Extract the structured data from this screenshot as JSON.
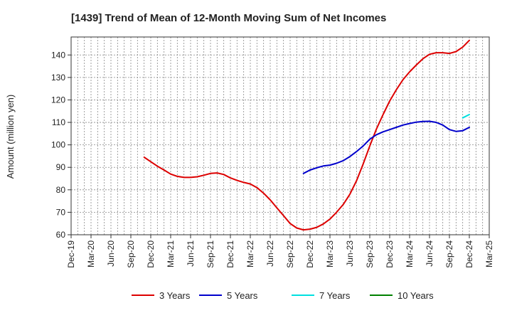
{
  "chart_data": {
    "type": "line",
    "title": "[1439]  Trend of Mean of 12-Month Moving Sum of Net Incomes",
    "ylabel": "Amount (million yen)",
    "xlabel": "",
    "ylim": [
      60,
      148
    ],
    "yticks": [
      60,
      70,
      80,
      90,
      100,
      110,
      120,
      130,
      140
    ],
    "x_range": [
      "2019-12",
      "2025-03"
    ],
    "xtick_labels": [
      "Dec-19",
      "Mar-20",
      "Jun-20",
      "Sep-20",
      "Dec-20",
      "Mar-21",
      "Jun-21",
      "Sep-21",
      "Dec-21",
      "Mar-22",
      "Jun-22",
      "Sep-22",
      "Dec-22",
      "Mar-23",
      "Jun-23",
      "Sep-23",
      "Dec-23",
      "Mar-24",
      "Jun-24",
      "Sep-24",
      "Dec-24",
      "Mar-25"
    ],
    "grid": true,
    "legend_position": "bottom",
    "series": [
      {
        "name": "3 Years",
        "color": "#dd0000",
        "x": [
          "2020-11",
          "2020-12",
          "2021-01",
          "2021-02",
          "2021-03",
          "2021-04",
          "2021-05",
          "2021-06",
          "2021-07",
          "2021-08",
          "2021-09",
          "2021-10",
          "2021-11",
          "2021-12",
          "2022-01",
          "2022-02",
          "2022-03",
          "2022-04",
          "2022-05",
          "2022-06",
          "2022-07",
          "2022-08",
          "2022-09",
          "2022-10",
          "2022-11",
          "2022-12",
          "2023-01",
          "2023-02",
          "2023-03",
          "2023-04",
          "2023-05",
          "2023-06",
          "2023-07",
          "2023-08",
          "2023-09",
          "2023-10",
          "2023-11",
          "2023-12",
          "2024-01",
          "2024-02",
          "2024-03",
          "2024-04",
          "2024-05",
          "2024-06",
          "2024-07",
          "2024-08",
          "2024-09",
          "2024-10",
          "2024-11",
          "2024-12"
        ],
        "values": [
          94.5,
          92.5,
          90.5,
          88.8,
          87.0,
          86.0,
          85.5,
          85.5,
          85.8,
          86.5,
          87.3,
          87.5,
          86.8,
          85.3,
          84.2,
          83.3,
          82.6,
          81.0,
          78.5,
          75.5,
          72.0,
          68.5,
          65.0,
          63.0,
          62.2,
          62.5,
          63.3,
          64.8,
          67.0,
          70.0,
          73.5,
          78.0,
          84.0,
          91.5,
          99.5,
          107.0,
          113.5,
          119.5,
          124.5,
          129.0,
          132.5,
          135.5,
          138.3,
          140.3,
          141.0,
          141.0,
          140.7,
          141.5,
          143.5,
          146.5
        ]
      },
      {
        "name": "5 Years",
        "color": "#0000cc",
        "x": [
          "2022-11",
          "2022-12",
          "2023-01",
          "2023-02",
          "2023-03",
          "2023-04",
          "2023-05",
          "2023-06",
          "2023-07",
          "2023-08",
          "2023-09",
          "2023-10",
          "2023-11",
          "2023-12",
          "2024-01",
          "2024-02",
          "2024-03",
          "2024-04",
          "2024-05",
          "2024-06",
          "2024-07",
          "2024-08",
          "2024-09",
          "2024-10",
          "2024-11",
          "2024-12"
        ],
        "values": [
          87.3,
          88.8,
          89.8,
          90.6,
          91.0,
          91.8,
          93.0,
          94.8,
          97.0,
          99.5,
          102.5,
          104.5,
          105.8,
          106.8,
          107.8,
          108.8,
          109.5,
          110.1,
          110.4,
          110.5,
          110.0,
          108.8,
          106.8,
          106.0,
          106.3,
          107.8
        ]
      },
      {
        "name": "7 Years",
        "color": "#00e0e0",
        "x": [
          "2024-11",
          "2024-12"
        ],
        "values": [
          112.0,
          113.5
        ]
      },
      {
        "name": "10 Years",
        "color": "#008000",
        "x": [],
        "values": []
      }
    ]
  }
}
